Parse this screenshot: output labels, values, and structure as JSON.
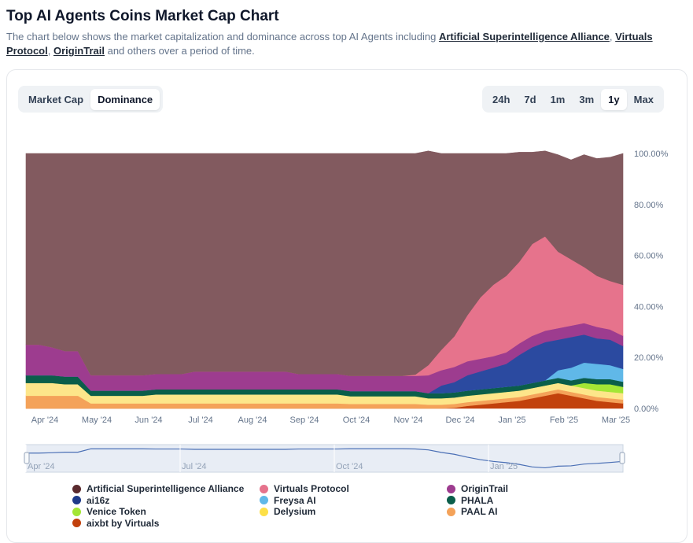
{
  "header": {
    "title": "Top AI Agents Coins Market Cap Chart",
    "subtitle_prefix": "The chart below shows the market capitalization and dominance across top AI Agents including ",
    "link1": "Artificial Superintelligence Alliance",
    "sep1": ", ",
    "link2": "Virtuals Protocol",
    "sep2": ", ",
    "link3": "OriginTrail",
    "subtitle_suffix": " and others over a period of time."
  },
  "view_toggle": {
    "market_cap": "Market Cap",
    "dominance": "Dominance",
    "selected": "Dominance"
  },
  "range_toggle": {
    "options": [
      "24h",
      "7d",
      "1m",
      "3m",
      "1y",
      "Max"
    ],
    "selected": "1y"
  },
  "chart_data": {
    "type": "area",
    "stacked": true,
    "percent": true,
    "x": [
      0,
      0.25,
      0.5,
      0.75,
      1,
      1.25,
      1.5,
      1.75,
      2,
      2.25,
      2.5,
      2.75,
      3,
      3.25,
      3.5,
      3.75,
      4,
      4.25,
      4.5,
      4.75,
      5,
      5.25,
      5.5,
      5.75,
      6,
      6.25,
      6.5,
      6.75,
      7,
      7.25,
      7.5,
      7.75,
      8,
      8.25,
      8.5,
      8.75,
      9,
      9.25,
      9.5,
      9.75,
      10,
      10.25,
      10.5,
      10.75,
      11,
      11.25,
      11.5
    ],
    "xticks": [
      "Apr '24",
      "May '24",
      "Jun '24",
      "Jul '24",
      "Aug '24",
      "Sep '24",
      "Oct '24",
      "Nov '24",
      "Dec '24",
      "Jan '25",
      "Feb '25",
      "Mar '25"
    ],
    "ylim": [
      0,
      100
    ],
    "yticks": [
      "0.00%",
      "20.00%",
      "40.00%",
      "60.00%",
      "80.00%",
      "100.00%"
    ],
    "series": [
      {
        "name": "aixbt by Virtuals",
        "color": "#c2410c",
        "values": [
          0,
          0,
          0,
          0,
          0,
          0,
          0,
          0,
          0,
          0,
          0,
          0,
          0,
          0,
          0,
          0,
          0,
          0,
          0,
          0,
          0,
          0,
          0,
          0,
          0,
          0,
          0,
          0,
          0,
          0,
          0,
          0,
          0,
          0.3,
          1,
          1.5,
          2,
          2.5,
          3,
          4,
          5,
          6,
          5,
          4,
          3,
          2.5,
          2
        ]
      },
      {
        "name": "PAAL AI",
        "color": "#f4a259",
        "values": [
          5,
          5,
          5,
          5,
          5,
          2,
          2,
          2,
          2,
          2,
          2,
          2,
          2,
          2,
          2,
          2,
          2,
          2,
          2,
          2,
          2,
          2,
          2,
          2,
          2,
          1.8,
          1.8,
          1.8,
          1.8,
          1.8,
          1.8,
          1.5,
          1.5,
          1.5,
          1.5,
          1.5,
          1.5,
          1.5,
          1.5,
          1.5,
          1.5,
          1.5,
          1.5,
          1.5,
          1.5,
          1.5,
          1.5
        ]
      },
      {
        "name": "Delysium",
        "color": "#fde68a",
        "values": [
          5,
          5,
          5,
          4.5,
          4.5,
          3,
          3,
          3,
          3,
          3,
          3.5,
          3.5,
          3.5,
          3.5,
          3.5,
          3.5,
          3.5,
          3.5,
          3.5,
          3.5,
          3.5,
          3.5,
          3.5,
          3.5,
          3.5,
          3,
          3,
          3,
          3,
          3,
          3,
          2.5,
          2.5,
          2.5,
          2.5,
          2.5,
          2.5,
          2.5,
          2.5,
          2.5,
          2.5,
          2.5,
          2.5,
          2.5,
          2.5,
          2.5,
          2.5
        ]
      },
      {
        "name": "Venice Token",
        "color": "#a3e635",
        "values": [
          0,
          0,
          0,
          0,
          0,
          0,
          0,
          0,
          0,
          0,
          0,
          0,
          0,
          0,
          0,
          0,
          0,
          0,
          0,
          0,
          0,
          0,
          0,
          0,
          0,
          0,
          0,
          0,
          0,
          0,
          0,
          0,
          0,
          0,
          0,
          0,
          0,
          0,
          0,
          0,
          0,
          0,
          0,
          2,
          2.5,
          3,
          2.5
        ]
      },
      {
        "name": "PHALA",
        "color": "#0b5e4a",
        "values": [
          3,
          3,
          3,
          3,
          3,
          2,
          2,
          2,
          2,
          2,
          2,
          2,
          2,
          2,
          2,
          2,
          2,
          2,
          2,
          2,
          2,
          2,
          2,
          2,
          2,
          2,
          2,
          2,
          2,
          2,
          2,
          2,
          2,
          2,
          2,
          2,
          2,
          2,
          2,
          2,
          2,
          2,
          2,
          2,
          2,
          2,
          2
        ]
      },
      {
        "name": "Freysa AI",
        "color": "#60b8e8",
        "values": [
          0,
          0,
          0,
          0,
          0,
          0,
          0,
          0,
          0,
          0,
          0,
          0,
          0,
          0,
          0,
          0,
          0,
          0,
          0,
          0,
          0,
          0,
          0,
          0,
          0,
          0,
          0,
          0,
          0,
          0,
          0,
          0,
          0,
          0,
          0,
          0,
          0,
          0,
          0,
          0,
          0,
          3,
          5,
          6,
          6,
          5.5,
          5
        ]
      },
      {
        "name": "ai16z",
        "color": "#2b4aa0",
        "values": [
          0,
          0,
          0,
          0,
          0,
          0,
          0,
          0,
          0,
          0,
          0,
          0,
          0,
          0,
          0,
          0,
          0,
          0,
          0,
          0,
          0,
          0,
          0,
          0,
          0,
          0,
          0,
          0,
          0,
          0,
          0,
          0,
          3,
          4,
          6,
          7,
          8,
          9,
          12,
          14,
          15,
          12,
          12,
          11,
          10,
          10,
          9
        ]
      },
      {
        "name": "OriginTrail",
        "color": "#9d3c8f",
        "values": [
          12,
          12,
          11,
          10,
          10,
          6,
          6,
          6,
          6,
          6,
          6,
          6,
          6,
          7,
          7,
          7,
          7,
          7,
          7,
          7,
          7,
          6,
          6,
          6,
          6,
          6,
          6,
          6,
          6,
          6,
          6,
          7,
          6,
          6,
          5.5,
          5,
          4.5,
          4.5,
          4.5,
          4.5,
          4.5,
          4.5,
          4.5,
          4.5,
          4.5,
          4,
          4
        ]
      },
      {
        "name": "Virtuals Protocol",
        "color": "#e6738c",
        "values": [
          0,
          0,
          0,
          0,
          0,
          0,
          0,
          0,
          0,
          0,
          0,
          0,
          0,
          0,
          0,
          0,
          0,
          0,
          0,
          0,
          0,
          0,
          0,
          0,
          0,
          0,
          0,
          0,
          0,
          0,
          0.5,
          4,
          8,
          12,
          18,
          24,
          28,
          30,
          32,
          36,
          37,
          30,
          26,
          22,
          20,
          19,
          20
        ]
      },
      {
        "name": "Artificial Superintelligence Alliance",
        "color": "#825a5f",
        "values": [
          75,
          75,
          76,
          77.5,
          77.5,
          87,
          87,
          87,
          87,
          87,
          86.5,
          86.5,
          86.5,
          85.5,
          85.5,
          85.5,
          85.5,
          85.5,
          85.5,
          85.5,
          85.5,
          86.5,
          86.5,
          86.5,
          86.5,
          87.2,
          87.2,
          87.2,
          87.2,
          87.2,
          86.7,
          84,
          77,
          71.7,
          63.5,
          56.5,
          51.5,
          48,
          43,
          36,
          33.5,
          38,
          39,
          44,
          46,
          48.5,
          51.5
        ]
      }
    ],
    "navigator": {
      "xticks": [
        "Apr '24",
        "Jul '24",
        "Oct '24",
        "Jan '25"
      ],
      "values": [
        75,
        75,
        76,
        77.5,
        77.5,
        87,
        87,
        87,
        87,
        87,
        86.5,
        86.5,
        86.5,
        85.5,
        85.5,
        85.5,
        85.5,
        85.5,
        85.5,
        85.5,
        85.5,
        86.5,
        86.5,
        86.5,
        86.5,
        87.2,
        87.2,
        87.2,
        87.2,
        87.2,
        86.7,
        84,
        77,
        71.7,
        63.5,
        56.5,
        51.5,
        48,
        43,
        36,
        33.5,
        38,
        39,
        44,
        46,
        48.5,
        51.5
      ]
    }
  },
  "legend": [
    {
      "label": "Artificial Superintelligence Alliance",
      "color": "#5a2a2e"
    },
    {
      "label": "Virtuals Protocol",
      "color": "#e6738c"
    },
    {
      "label": "OriginTrail",
      "color": "#9d3c8f"
    },
    {
      "label": "ai16z",
      "color": "#1e3a8a"
    },
    {
      "label": "Freysa AI",
      "color": "#60b8e8"
    },
    {
      "label": "PHALA",
      "color": "#0b5e4a"
    },
    {
      "label": "Venice Token",
      "color": "#a3e635"
    },
    {
      "label": "Delysium",
      "color": "#fde047"
    },
    {
      "label": "PAAL AI",
      "color": "#f4a259"
    },
    {
      "label": "aixbt by Virtuals",
      "color": "#c2410c"
    }
  ]
}
